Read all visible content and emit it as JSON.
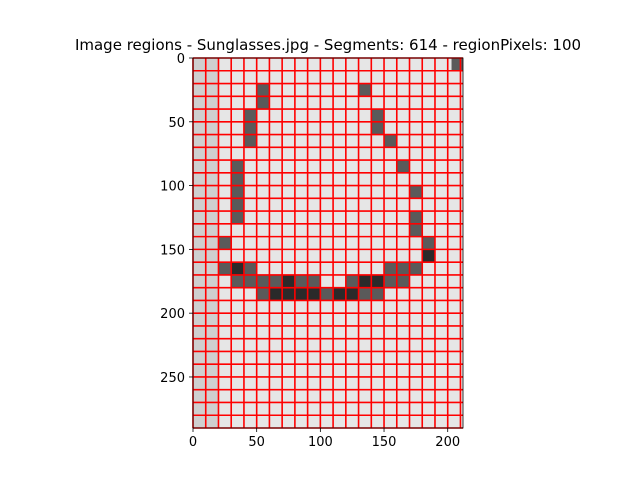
{
  "chart_data": {
    "type": "heatmap",
    "title": "Image regions - Sunglasses.jpg - Segments: 614 - regionPixels: 100",
    "xlabel": "",
    "ylabel": "",
    "x_ticks": [
      0,
      50,
      100,
      150,
      200
    ],
    "y_ticks": [
      0,
      50,
      100,
      150,
      200,
      250
    ],
    "xlim": [
      0,
      212
    ],
    "ylim": [
      290,
      0
    ],
    "grid": false,
    "image_width": 212,
    "image_height": 290,
    "cell_size": 10,
    "overlay_color": "#ff0000",
    "colors": {
      "background": "#cfcfcf",
      "light": "#e6e6e6",
      "mid": "#5a5a5a",
      "dark": "#2a2a2a"
    },
    "dark_regions": [
      {
        "x": 55,
        "y": 25,
        "level": "mid"
      },
      {
        "x": 55,
        "y": 35,
        "level": "mid"
      },
      {
        "x": 45,
        "y": 45,
        "level": "mid"
      },
      {
        "x": 45,
        "y": 55,
        "level": "mid"
      },
      {
        "x": 45,
        "y": 65,
        "level": "mid"
      },
      {
        "x": 135,
        "y": 25,
        "level": "mid"
      },
      {
        "x": 145,
        "y": 45,
        "level": "mid"
      },
      {
        "x": 145,
        "y": 55,
        "level": "mid"
      },
      {
        "x": 155,
        "y": 65,
        "level": "mid"
      },
      {
        "x": 165,
        "y": 85,
        "level": "mid"
      },
      {
        "x": 35,
        "y": 85,
        "level": "mid"
      },
      {
        "x": 35,
        "y": 95,
        "level": "mid"
      },
      {
        "x": 35,
        "y": 105,
        "level": "mid"
      },
      {
        "x": 35,
        "y": 115,
        "level": "mid"
      },
      {
        "x": 35,
        "y": 125,
        "level": "mid"
      },
      {
        "x": 25,
        "y": 145,
        "level": "mid"
      },
      {
        "x": 25,
        "y": 165,
        "level": "mid"
      },
      {
        "x": 35,
        "y": 175,
        "level": "mid"
      },
      {
        "x": 35,
        "y": 165,
        "level": "dark"
      },
      {
        "x": 45,
        "y": 165,
        "level": "mid"
      },
      {
        "x": 45,
        "y": 175,
        "level": "mid"
      },
      {
        "x": 55,
        "y": 175,
        "level": "mid"
      },
      {
        "x": 55,
        "y": 185,
        "level": "mid"
      },
      {
        "x": 65,
        "y": 175,
        "level": "mid"
      },
      {
        "x": 65,
        "y": 185,
        "level": "dark"
      },
      {
        "x": 75,
        "y": 175,
        "level": "dark"
      },
      {
        "x": 75,
        "y": 185,
        "level": "dark"
      },
      {
        "x": 85,
        "y": 175,
        "level": "mid"
      },
      {
        "x": 85,
        "y": 185,
        "level": "dark"
      },
      {
        "x": 95,
        "y": 175,
        "level": "mid"
      },
      {
        "x": 95,
        "y": 185,
        "level": "dark"
      },
      {
        "x": 105,
        "y": 185,
        "level": "mid"
      },
      {
        "x": 115,
        "y": 185,
        "level": "dark"
      },
      {
        "x": 125,
        "y": 175,
        "level": "mid"
      },
      {
        "x": 125,
        "y": 185,
        "level": "dark"
      },
      {
        "x": 135,
        "y": 175,
        "level": "dark"
      },
      {
        "x": 135,
        "y": 185,
        "level": "mid"
      },
      {
        "x": 145,
        "y": 175,
        "level": "dark"
      },
      {
        "x": 145,
        "y": 185,
        "level": "mid"
      },
      {
        "x": 155,
        "y": 165,
        "level": "mid"
      },
      {
        "x": 155,
        "y": 175,
        "level": "mid"
      },
      {
        "x": 165,
        "y": 165,
        "level": "mid"
      },
      {
        "x": 165,
        "y": 175,
        "level": "mid"
      },
      {
        "x": 175,
        "y": 105,
        "level": "mid"
      },
      {
        "x": 175,
        "y": 125,
        "level": "mid"
      },
      {
        "x": 175,
        "y": 135,
        "level": "mid"
      },
      {
        "x": 175,
        "y": 165,
        "level": "mid"
      },
      {
        "x": 185,
        "y": 145,
        "level": "mid"
      },
      {
        "x": 185,
        "y": 155,
        "level": "dark"
      }
    ]
  }
}
